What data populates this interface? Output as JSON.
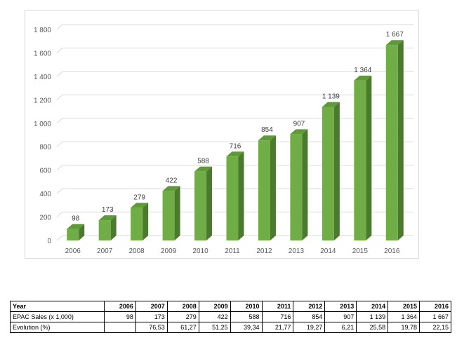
{
  "chart_data": {
    "type": "bar",
    "categories": [
      "2006",
      "2007",
      "2008",
      "2009",
      "2010",
      "2011",
      "2012",
      "2013",
      "2014",
      "2015",
      "2016"
    ],
    "values": [
      98,
      173,
      279,
      422,
      588,
      716,
      854,
      907,
      1139,
      1364,
      1667
    ],
    "data_labels": [
      "98",
      "173",
      "279",
      "422",
      "588",
      "716",
      "854",
      "907",
      "1 139",
      "1 364",
      "1 667"
    ],
    "y_ticks": [
      "0",
      "200",
      "400",
      "600",
      "800",
      "1 000",
      "1 200",
      "1 400",
      "1 600",
      "1 800"
    ],
    "ylim": [
      0,
      1800
    ],
    "grid": true,
    "style": "3d-bar",
    "colors": {
      "bar_front": "#70ad47",
      "bar_side": "#4a7a2c",
      "bar_top": "#5f9a38",
      "gridline": "#d9d9d9"
    }
  },
  "table": {
    "header": [
      "Year",
      "2006",
      "2007",
      "2008",
      "2009",
      "2010",
      "2011",
      "2012",
      "2013",
      "2014",
      "2015",
      "2016"
    ],
    "rows": [
      [
        "EPAC Sales (x 1,000)",
        "98",
        "173",
        "279",
        "422",
        "588",
        "716",
        "854",
        "907",
        "1 139",
        "1 364",
        "1 667"
      ],
      [
        "Evolution (%)",
        "",
        "76,53",
        "61,27",
        "51,25",
        "39,34",
        "21,77",
        "19,27",
        "6,21",
        "25,58",
        "19,78",
        "22,15"
      ]
    ]
  }
}
